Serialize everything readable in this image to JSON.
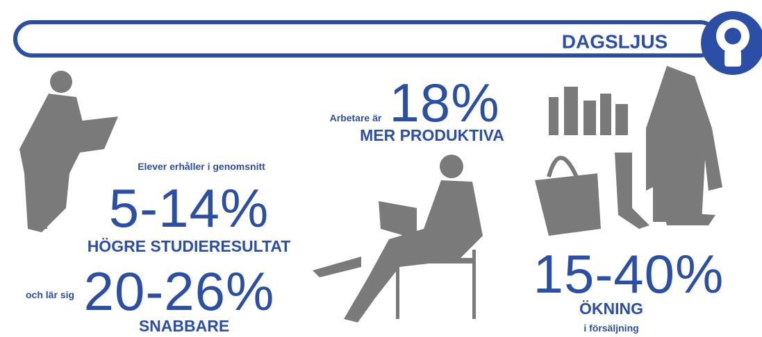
{
  "header": {
    "title": "DAGSLJUS"
  },
  "students": {
    "intro": "Elever erhåller i genomsnitt",
    "figure": "5-14%",
    "result": "HÖGRE STUDIERESULTAT",
    "intro2": "och lär sig",
    "figure2": "20-26%",
    "result2": "SNABBARE"
  },
  "workers": {
    "intro": "Arbetare är",
    "figure": "18%",
    "result": "MER PRODUKTIVA"
  },
  "retail": {
    "figure": "15-40%",
    "result": "ÖKNING",
    "detail": "i försäljning"
  }
}
